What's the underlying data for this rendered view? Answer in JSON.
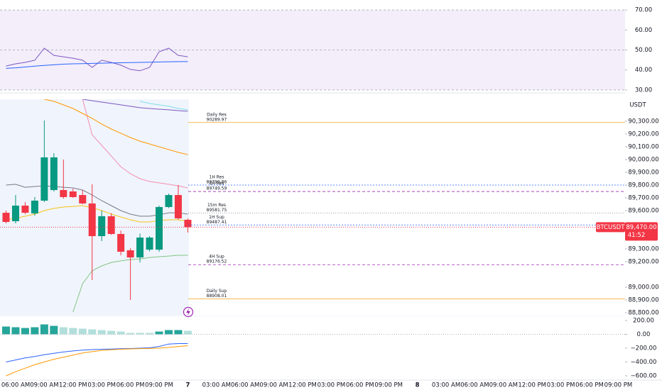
{
  "chart_data": {
    "type": "candlestick",
    "symbol": "BTCUSDT",
    "currency": "USDT",
    "timer": "41:52",
    "last_price": {
      "value": 89470,
      "label": "89,470.00"
    },
    "up_color": "#089981",
    "down_color": "#f23645",
    "ylim": [
      88778,
      90472
    ],
    "yticks": [
      {
        "value": 90300,
        "label": "90,300.00"
      },
      {
        "value": 90200,
        "label": "90,200.00"
      },
      {
        "value": 90100,
        "label": "90,100.00"
      },
      {
        "value": 90000,
        "label": "90,000.00"
      },
      {
        "value": 89900,
        "label": "89,900.00"
      },
      {
        "value": 89800,
        "label": "89,800.00"
      },
      {
        "value": 89700,
        "label": "89,700.00"
      },
      {
        "value": 89600,
        "label": "89,600.00"
      },
      {
        "value": 89300,
        "label": "89,300.00"
      },
      {
        "value": 89200,
        "label": "89,200.00"
      },
      {
        "value": 89000,
        "label": "89,000.00"
      },
      {
        "value": 88900,
        "label": "88,900.00"
      },
      {
        "value": 88800,
        "label": "88,800.00"
      }
    ],
    "x_labels": [
      "06:00 AM",
      "09:00 AM",
      "12:00 PM",
      "03:00 PM",
      "06:00 PM",
      "09:00 PM",
      "7",
      "03:00 AM",
      "06:00 AM",
      "09:00 AM",
      "12:00 PM",
      "03:00 PM",
      "06:00 PM",
      "09:00 PM",
      "8",
      "03:00 AM",
      "06:00 AM",
      "09:00 AM",
      "12:00 PM",
      "03:00 PM",
      "06:00 PM",
      "09:00 PM"
    ],
    "open": [
      89583,
      89517,
      89639,
      89578,
      89678,
      89761,
      89761,
      89750,
      89722,
      89656,
      89400,
      89556,
      89417,
      89289,
      89233,
      89294,
      89294,
      89628,
      89722,
      89528
    ],
    "high": [
      89600,
      89722,
      89667,
      89706,
      90306,
      90050,
      90000,
      89772,
      89760,
      89806,
      89600,
      89580,
      89444,
      89306,
      89420,
      89400,
      89639,
      89733,
      89800,
      89539
    ],
    "low": [
      89500,
      89500,
      89572,
      89561,
      89667,
      89750,
      89694,
      89700,
      89650,
      89056,
      89361,
      89410,
      89250,
      88900,
      89194,
      89280,
      89278,
      89620,
      89528,
      89428
    ],
    "close": [
      89511,
      89639,
      89583,
      89678,
      90017,
      90017,
      89706,
      89706,
      89656,
      89400,
      89556,
      89417,
      89278,
      89233,
      89389,
      89389,
      89628,
      89722,
      89539,
      89470
    ],
    "overlays": [
      {
        "color": "#787b86",
        "values": [
          89800,
          89806,
          89783,
          89789,
          89794,
          89789,
          89783,
          89778,
          89761,
          89722,
          89678,
          89639,
          89600,
          89572,
          89556,
          89556,
          89567,
          89583,
          89583,
          89572
        ]
      },
      {
        "color": "#f5c518",
        "values": [
          89528,
          89539,
          89556,
          89572,
          89600,
          89617,
          89628,
          89633,
          89639,
          89622,
          89600,
          89572,
          89550,
          89528,
          89511,
          89511,
          89522,
          89528,
          89528,
          89517
        ]
      },
      {
        "color": "#f48fb1",
        "values": [
          null,
          null,
          null,
          null,
          null,
          null,
          null,
          null,
          90472,
          90194,
          90111,
          90028,
          89944,
          89889,
          89850,
          89828,
          89817,
          89806,
          89794,
          89778
        ]
      },
      {
        "color": "#81c784",
        "values": [
          null,
          null,
          null,
          null,
          null,
          null,
          null,
          88806,
          89028,
          89128,
          89167,
          89194,
          89206,
          89217,
          89222,
          89233,
          89239,
          89244,
          89250,
          89250
        ]
      },
      {
        "color": "#ff9800",
        "values": [
          null,
          null,
          null,
          null,
          90472,
          90456,
          90428,
          90400,
          90361,
          90322,
          90278,
          90239,
          90206,
          90172,
          90144,
          90122,
          90100,
          90078,
          90056,
          90039
        ]
      },
      {
        "color": "#7e57c2",
        "values": [
          null,
          null,
          null,
          null,
          null,
          null,
          null,
          null,
          90472,
          90461,
          90450,
          90439,
          90428,
          90417,
          90406,
          90400,
          90394,
          90389,
          90383,
          90378
        ]
      },
      {
        "color": "#80deea",
        "values": [
          null,
          null,
          null,
          null,
          null,
          null,
          null,
          null,
          null,
          null,
          null,
          null,
          null,
          null,
          90456,
          90439,
          90428,
          90417,
          90400,
          90389
        ]
      }
    ],
    "levels": [
      {
        "name": "Daily Res",
        "value": 90289.97,
        "color": "#f7a21b",
        "dash": ""
      },
      {
        "name": "1H Res",
        "value": 89799.86,
        "color": "#2962ff",
        "dash": "2,2"
      },
      {
        "name": "8H Res",
        "value": 89749.59,
        "color": "#9c27b0",
        "dash": "4,3"
      },
      {
        "name": "15m Res",
        "value": 89581.75,
        "color": "#787b86",
        "dash": "1,2"
      },
      {
        "name": "1H Sup",
        "value": 89487.41,
        "color": "#2962ff",
        "dash": "2,2"
      },
      {
        "name": "4H Sup",
        "value": 89176.52,
        "color": "#9c27b0",
        "dash": "4,3"
      },
      {
        "name": "Daily Sup",
        "value": 88908.01,
        "color": "#f7a21b",
        "dash": ""
      }
    ],
    "rsi": {
      "ylim": [
        28.9,
        75
      ],
      "yticks": [
        {
          "value": 70,
          "label": "70.00"
        },
        {
          "value": 60,
          "label": "60.00"
        },
        {
          "value": 50,
          "label": "50.00"
        },
        {
          "value": 40,
          "label": "40.00"
        },
        {
          "value": 30,
          "label": "30.00"
        }
      ],
      "band": [
        30,
        70
      ],
      "dashed": [
        70,
        50,
        30
      ],
      "series": [
        {
          "color": "#7e57c2",
          "values": [
            42.0,
            43.1,
            43.8,
            44.9,
            50.9,
            47.3,
            46.6,
            45.9,
            44.9,
            41.3,
            44.9,
            43.8,
            42.4,
            40.3,
            39.6,
            41.3,
            49.1,
            50.9,
            47.3,
            46.6
          ]
        },
        {
          "color": "#2962ff",
          "values": [
            40.8,
            41.1,
            41.5,
            41.9,
            42.3,
            42.6,
            42.9,
            43.1,
            43.2,
            43.3,
            43.4,
            43.5,
            43.6,
            43.7,
            43.8,
            43.9,
            44.0,
            44.1,
            44.2,
            44.2
          ]
        }
      ]
    },
    "macd": {
      "ylim": [
        -651,
        272
      ],
      "yticks": [
        {
          "value": 200,
          "label": "200.00"
        },
        {
          "value": 0,
          "label": "0.00"
        },
        {
          "value": -200,
          "label": "−200.00"
        },
        {
          "value": -400,
          "label": "−400.00"
        },
        {
          "value": -600,
          "label": "−600.00"
        }
      ],
      "histogram": [
        113,
        103,
        92,
        103,
        144,
        123,
        103,
        92,
        82,
        72,
        62,
        51,
        41,
        21,
        21,
        21,
        41,
        62,
        62,
        51
      ],
      "histogram_colors": [
        "#26a69a",
        "#26a69a",
        "#26a69a",
        "#26a69a",
        "#26a69a",
        "#26a69a",
        "#b2dfdb",
        "#b2dfdb",
        "#b2dfdb",
        "#b2dfdb",
        "#b2dfdb",
        "#b2dfdb",
        "#b2dfdb",
        "#b2dfdb",
        "#b2dfdb",
        "#b2dfdb",
        "#26a69a",
        "#26a69a",
        "#26a69a",
        "#b2dfdb"
      ],
      "series": [
        {
          "color": "#2962ff",
          "values": [
            -400,
            -370,
            -340,
            -320,
            -295,
            -275,
            -255,
            -240,
            -228,
            -220,
            -215,
            -212,
            -208,
            -205,
            -200,
            -195,
            -175,
            -140,
            -133,
            -133
          ]
        },
        {
          "color": "#ff9800",
          "values": [
            -600,
            -540,
            -490,
            -440,
            -400,
            -360,
            -330,
            -300,
            -270,
            -250,
            -232,
            -222,
            -215,
            -210,
            -206,
            -204,
            -200,
            -190,
            -175,
            -164
          ]
        }
      ]
    }
  }
}
